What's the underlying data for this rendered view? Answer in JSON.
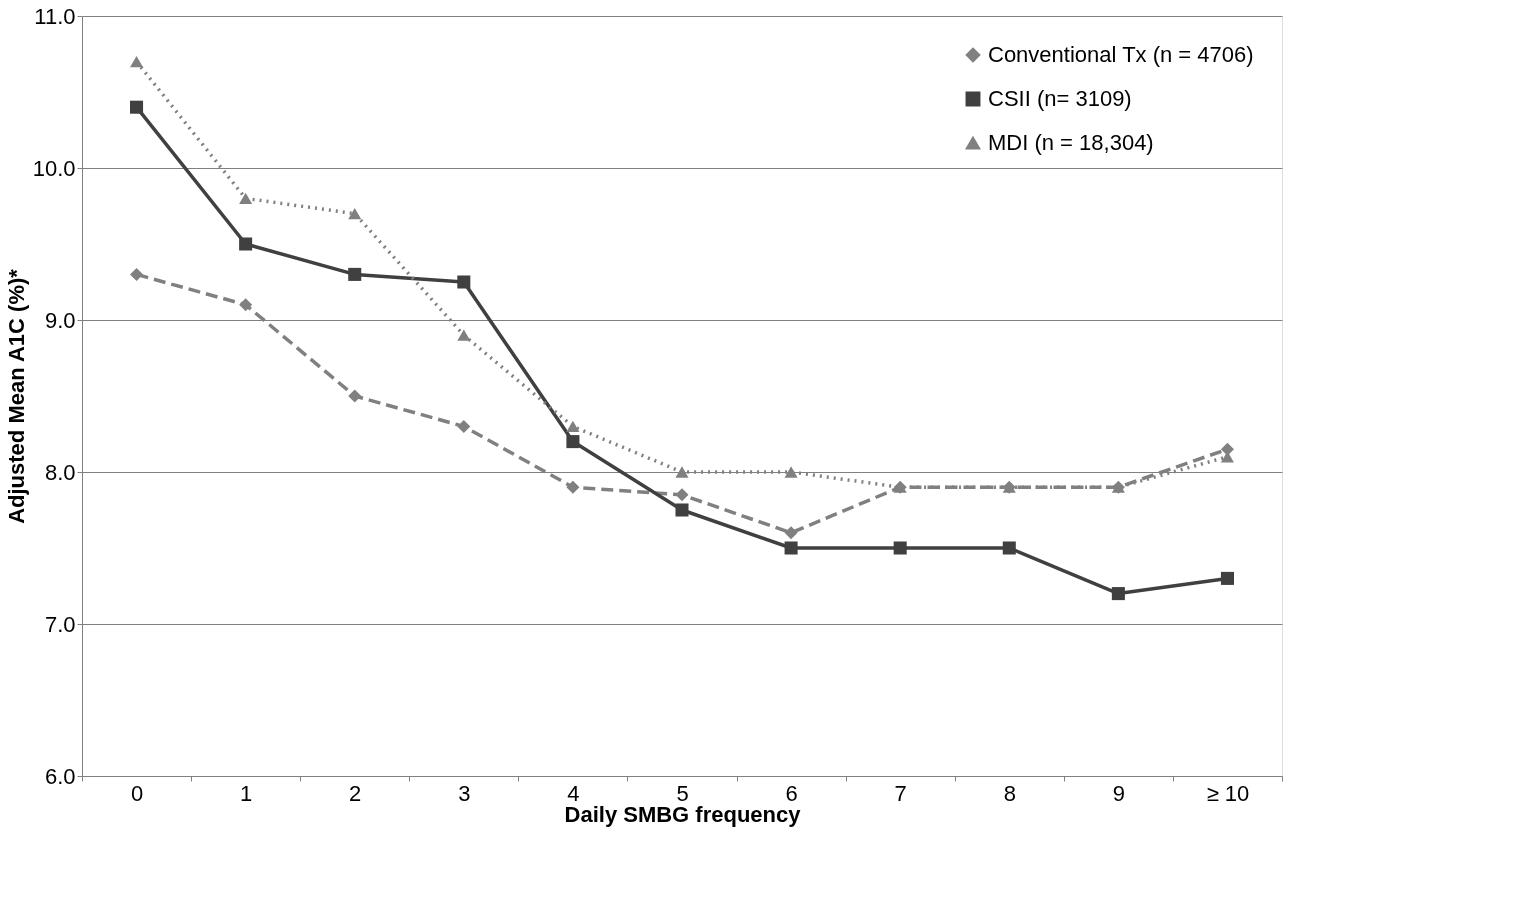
{
  "chart_data": {
    "type": "line",
    "xlabel": "Daily SMBG frequency",
    "ylabel": "Adjusted Mean A1C (%)*",
    "categories": [
      "0",
      "1",
      "2",
      "3",
      "4",
      "5",
      "6",
      "7",
      "8",
      "9",
      "≥ 10"
    ],
    "series": [
      {
        "name": "Conventional Tx (n = 4706)",
        "color": "#808080",
        "marker": "diamond",
        "line_style": "dashed",
        "values": [
          9.3,
          9.1,
          8.5,
          8.3,
          7.9,
          7.85,
          7.6,
          7.9,
          7.9,
          7.9,
          8.15
        ]
      },
      {
        "name": "CSII (n= 3109)",
        "color": "#404040",
        "marker": "square",
        "line_style": "solid",
        "values": [
          10.4,
          9.5,
          9.3,
          9.25,
          8.2,
          7.75,
          7.5,
          7.5,
          7.5,
          7.2,
          7.3
        ]
      },
      {
        "name": "MDI (n = 18,304)",
        "color": "#808080",
        "marker": "triangle",
        "line_style": "dotted",
        "values": [
          10.7,
          9.8,
          9.7,
          8.9,
          8.3,
          8.0,
          8.0,
          7.9,
          7.9,
          7.9,
          8.1
        ]
      }
    ],
    "ylim": [
      6,
      11
    ],
    "yticks": [
      {
        "value": 6,
        "label": "6.0"
      },
      {
        "value": 7,
        "label": "7.0"
      },
      {
        "value": 8,
        "label": "8.0"
      },
      {
        "value": 9,
        "label": "9.0"
      },
      {
        "value": 10,
        "label": "10.0"
      },
      {
        "value": 11,
        "label": "11.0"
      }
    ],
    "grid": "y",
    "legend": "top right"
  }
}
